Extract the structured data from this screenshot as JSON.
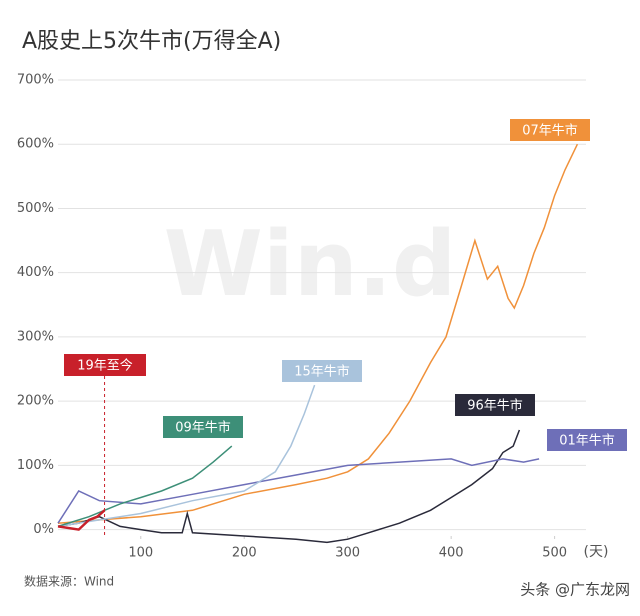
{
  "chart_data": {
    "type": "line",
    "title": "A股史上5次牛市(万得全A)",
    "x_label": "(天)",
    "source": "数据来源：Wind",
    "watermark": "Win.d",
    "credit": "头条 @广东龙网",
    "xlim": [
      20,
      540
    ],
    "xticks": [
      100,
      200,
      300,
      400,
      500
    ],
    "ylim": [
      -10,
      700
    ],
    "yticks": [
      {
        "value": 0,
        "label": "0%"
      },
      {
        "value": 100,
        "label": "100%"
      },
      {
        "value": 200,
        "label": "200%"
      },
      {
        "value": 300,
        "label": "300%"
      },
      {
        "value": 400,
        "label": "400%"
      },
      {
        "value": 500,
        "label": "500%"
      },
      {
        "value": 600,
        "label": "600%"
      },
      {
        "value": 700,
        "label": "700%"
      }
    ],
    "grid": true,
    "series": [
      {
        "name": "07年牛市",
        "color": "#f0913a",
        "x": [
          20,
          60,
          100,
          150,
          200,
          250,
          280,
          300,
          320,
          340,
          360,
          380,
          395,
          410,
          423,
          435,
          445,
          455,
          461,
          470,
          480,
          490,
          500,
          510,
          522
        ],
        "values": [
          10,
          15,
          20,
          30,
          55,
          70,
          80,
          90,
          110,
          150,
          200,
          260,
          300,
          380,
          450,
          390,
          410,
          360,
          345,
          380,
          430,
          470,
          520,
          560,
          600
        ]
      },
      {
        "name": "96年牛市",
        "color": "#2a2a3a",
        "x": [
          20,
          40,
          60,
          80,
          100,
          120,
          140,
          145,
          150,
          200,
          250,
          280,
          300,
          320,
          350,
          380,
          400,
          420,
          440,
          450,
          460,
          466
        ],
        "values": [
          5,
          10,
          20,
          5,
          0,
          -5,
          -5,
          25,
          -5,
          -10,
          -15,
          -20,
          -15,
          -5,
          10,
          30,
          50,
          70,
          95,
          120,
          130,
          155
        ]
      },
      {
        "name": "01年牛市",
        "color": "#6e6fb8",
        "x": [
          20,
          40,
          60,
          100,
          150,
          200,
          250,
          300,
          350,
          400,
          420,
          450,
          470,
          485
        ],
        "values": [
          10,
          60,
          45,
          40,
          55,
          70,
          85,
          100,
          105,
          110,
          100,
          110,
          105,
          110
        ]
      },
      {
        "name": "15年牛市",
        "color": "#a9c3dc",
        "x": [
          20,
          60,
          100,
          150,
          200,
          230,
          245,
          258,
          268
        ],
        "values": [
          5,
          15,
          25,
          45,
          60,
          90,
          130,
          180,
          225
        ]
      },
      {
        "name": "09年牛市",
        "color": "#3d8f78",
        "x": [
          20,
          50,
          80,
          100,
          120,
          150,
          170,
          188
        ],
        "values": [
          5,
          20,
          40,
          50,
          60,
          80,
          105,
          130
        ]
      },
      {
        "name": "19年至今",
        "color": "#c8202a",
        "x": [
          20,
          40,
          50,
          58,
          65
        ],
        "values": [
          5,
          0,
          15,
          20,
          30
        ]
      }
    ]
  }
}
